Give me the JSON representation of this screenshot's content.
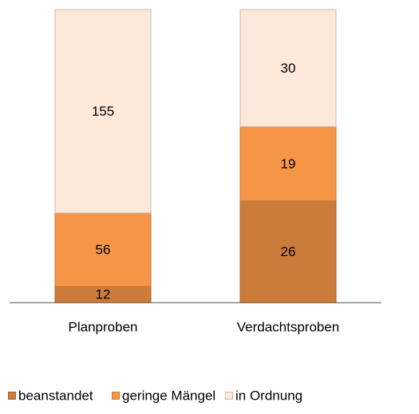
{
  "chart_data": {
    "type": "stacked100",
    "categories": [
      "Planproben",
      "Verdachtsproben"
    ],
    "series": [
      {
        "name": "beanstandet",
        "color": "#cc7c3a",
        "values": [
          12,
          26
        ]
      },
      {
        "name": "geringe Mängel",
        "color": "#f79646",
        "values": [
          56,
          19
        ]
      },
      {
        "name": "in Ordnung",
        "color": "#fde9d9",
        "values": [
          155,
          30
        ]
      }
    ],
    "legend": "bottom"
  }
}
